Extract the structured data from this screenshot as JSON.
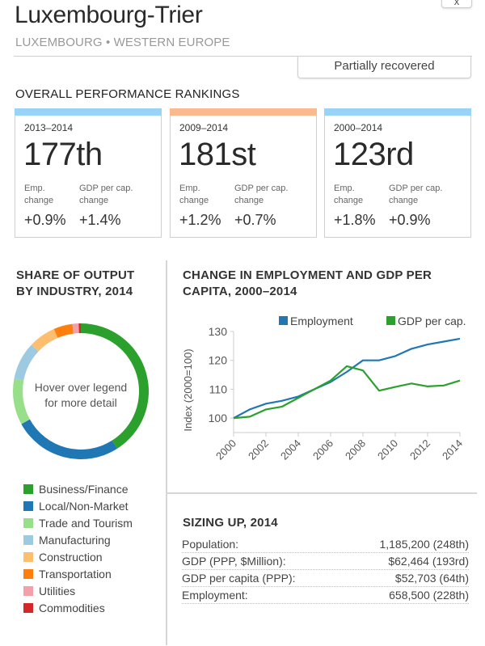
{
  "header": {
    "close_label": "x",
    "title": "Luxembourg-Trier",
    "subtitle": "LUXEMBOURG • WESTERN EUROPE",
    "status": "Partially recovered"
  },
  "rankings": {
    "heading": "OVERALL PERFORMANCE RANKINGS",
    "cards": [
      {
        "period": "2013–2014",
        "rank": "177th",
        "emp_label": "Emp. change",
        "gdp_label": "GDP per cap. change",
        "emp_value": "+0.9%",
        "gdp_value": "+1.4%",
        "color": "#99d3f7"
      },
      {
        "period": "2009–2014",
        "rank": "181st",
        "emp_label": "Emp. change",
        "gdp_label": "GDP per cap. change",
        "emp_value": "+1.2%",
        "gdp_value": "+0.7%",
        "color": "#fbb98e"
      },
      {
        "period": "2000–2014",
        "rank": "123rd",
        "emp_label": "Emp. change",
        "gdp_label": "GDP per cap. change",
        "emp_value": "+1.8%",
        "gdp_value": "+0.9%",
        "color": "#99d3f7"
      }
    ]
  },
  "share": {
    "heading_line1": "SHARE OF OUTPUT",
    "heading_line2": "BY INDUSTRY, 2014",
    "hint_line1": "Hover over legend",
    "hint_line2": "for more detail"
  },
  "change": {
    "heading_line1": "CHANGE IN EMPLOYMENT AND GDP PER",
    "heading_line2": "CAPITA, 2000–2014"
  },
  "sizing": {
    "heading": "SIZING UP, 2014",
    "rows": [
      {
        "label": "Population:",
        "value": "1,185,200 (248th)"
      },
      {
        "label": "GDP (PPP, $Million):",
        "value": "$62,464 (193rd)"
      },
      {
        "label": "GDP per capita (PPP):",
        "value": "$52,703 (64th)"
      },
      {
        "label": "Employment:",
        "value": "658,500 (228th)"
      }
    ]
  },
  "chart_data": [
    {
      "type": "pie",
      "title": "SHARE OF OUTPUT BY INDUSTRY, 2014",
      "donut": true,
      "categories": [
        "Business/Finance",
        "Local/Non-Market",
        "Trade and Tourism",
        "Manufacturing",
        "Construction",
        "Transportation",
        "Utilities",
        "Commodities"
      ],
      "values": [
        41,
        26,
        11,
        9,
        6.5,
        4.5,
        1.5,
        0.5
      ],
      "colors": [
        "#2ca02c",
        "#1f77b4",
        "#98df8a",
        "#9ecae1",
        "#fdbf6f",
        "#ff7f0e",
        "#f4a0a8",
        "#d62728"
      ],
      "legend": "bottom"
    },
    {
      "type": "line",
      "title": "CHANGE IN EMPLOYMENT AND GDP PER CAPITA, 2000–2014",
      "xlabel": "",
      "ylabel": "Index (2000=100)",
      "x": [
        2000,
        2001,
        2002,
        2003,
        2004,
        2005,
        2006,
        2007,
        2008,
        2009,
        2010,
        2011,
        2012,
        2013,
        2014
      ],
      "xticks": [
        "2000",
        "2002",
        "2004",
        "2006",
        "2008",
        "2010",
        "2012",
        "2014"
      ],
      "yticks": [
        "100",
        "110",
        "120",
        "130"
      ],
      "ylim": [
        95,
        130
      ],
      "grid": false,
      "legend": "top-right",
      "series": [
        {
          "name": "Employment",
          "color": "#1f77b4",
          "values": [
            100,
            103,
            105,
            106,
            107.5,
            110,
            112.5,
            116,
            120,
            120,
            121.5,
            124,
            125.5,
            126.5,
            127.5
          ]
        },
        {
          "name": "GDP per cap.",
          "color": "#2ca02c",
          "values": [
            100,
            100.5,
            103,
            104,
            107,
            110,
            113,
            118,
            116.5,
            109.5,
            110.8,
            112,
            111,
            111.3,
            113
          ]
        }
      ]
    }
  ]
}
